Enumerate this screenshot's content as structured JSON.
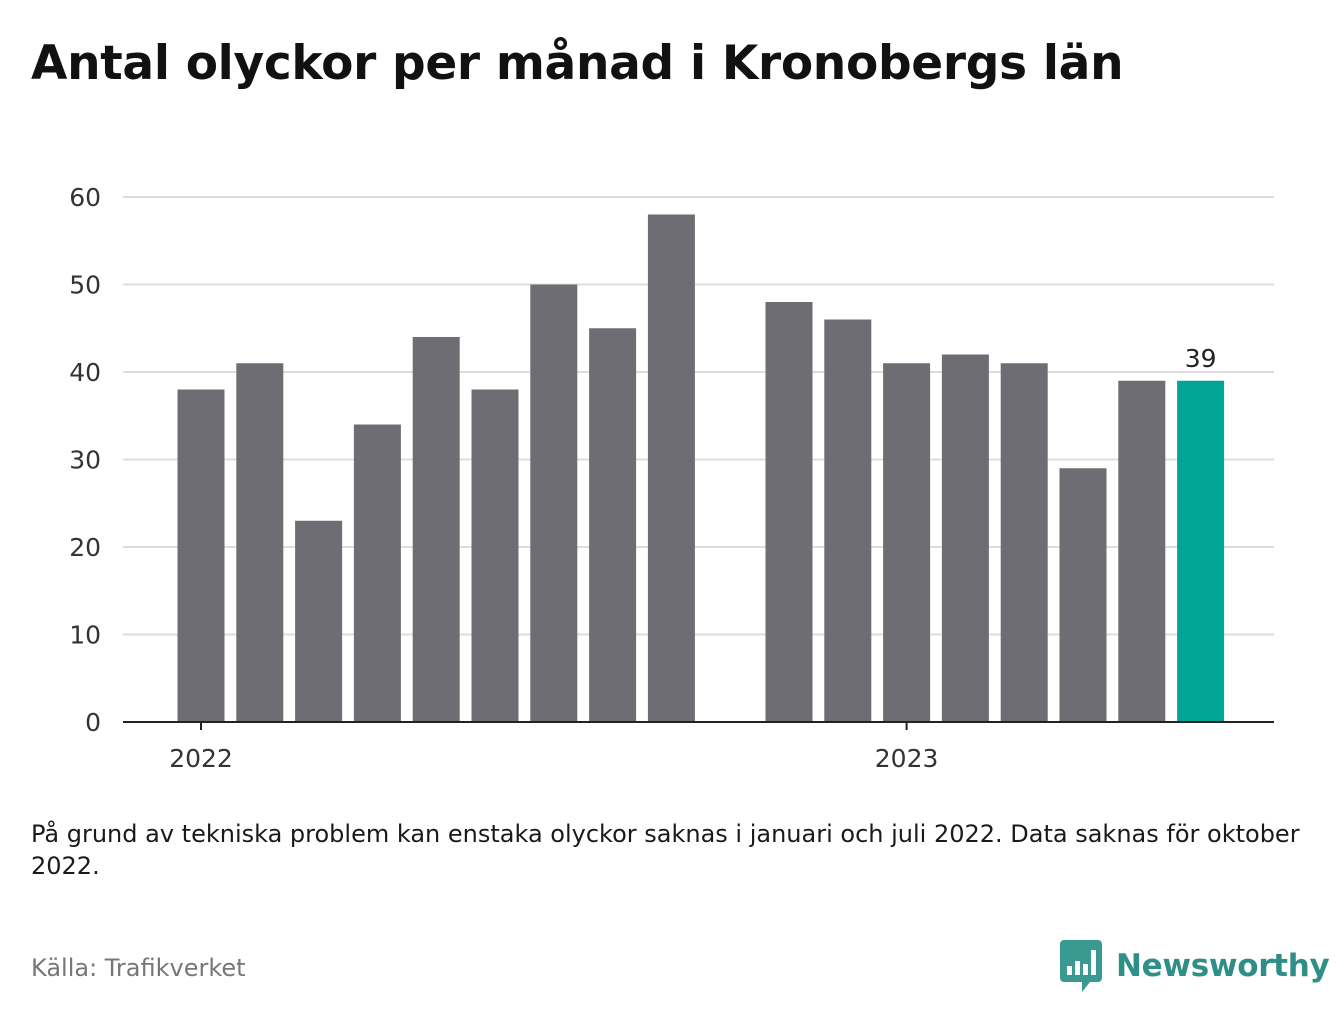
{
  "title": "Antal olyckor per månad i Kronobergs län",
  "note": "På grund av tekniska problem kan enstaka olyckor saknas i januari och juli 2022. Data saknas för oktober 2022.",
  "source": "Källa: Trafikverket",
  "brand": {
    "name": "Newsworthy",
    "icon": "newsworthy-logo-icon",
    "color": "#3a9a92"
  },
  "colors": {
    "bar": "#6e6d73",
    "highlight": "#00a596",
    "grid": "#dddddd",
    "axis": "#222222"
  },
  "chart_data": {
    "type": "bar",
    "categories": [
      "2022-01",
      "2022-02",
      "2022-03",
      "2022-04",
      "2022-05",
      "2022-06",
      "2022-07",
      "2022-08",
      "2022-09",
      "2022-10",
      "2022-11",
      "2022-12",
      "2023-01",
      "2023-02",
      "2023-03",
      "2023-04",
      "2023-05",
      "2023-06"
    ],
    "values": [
      38,
      41,
      23,
      34,
      44,
      38,
      50,
      45,
      58,
      null,
      48,
      46,
      41,
      42,
      41,
      29,
      39,
      39
    ],
    "highlight": "2023-06",
    "data_labels": [
      {
        "category": "2023-06",
        "text": "39"
      }
    ],
    "x_ticks": [
      {
        "category": "2022-01",
        "label": "2022"
      },
      {
        "category": "2023-01",
        "label": "2023"
      }
    ],
    "y_ticks": [
      0,
      10,
      20,
      30,
      40,
      50,
      60
    ],
    "ylim": [
      0,
      60
    ],
    "grid": true,
    "xlabel": "",
    "ylabel": ""
  }
}
